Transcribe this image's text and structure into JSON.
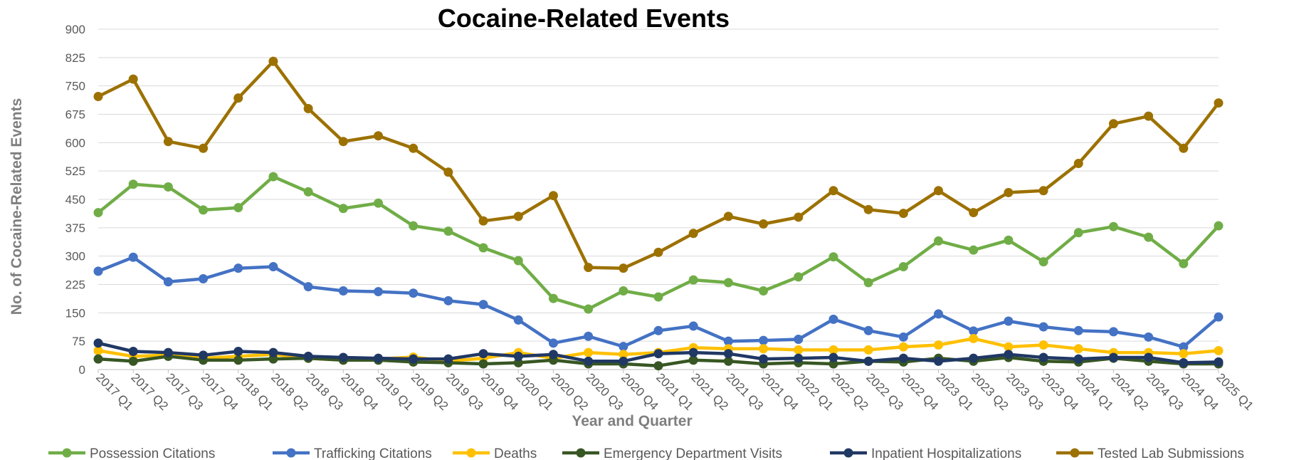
{
  "chart_data": {
    "type": "line",
    "title": "Cocaine-Related Events",
    "xlabel": "Year and Quarter",
    "ylabel": "No. of Cocaine-Related Events",
    "ylim": [
      0,
      900
    ],
    "yticks": [
      0,
      75,
      150,
      225,
      300,
      375,
      450,
      525,
      600,
      675,
      750,
      825,
      900
    ],
    "grid": true,
    "legend_position": "bottom",
    "categories": [
      "2017 Q1",
      "2017 Q2",
      "2017 Q3",
      "2017 Q4",
      "2018 Q1",
      "2018 Q2",
      "2018 Q3",
      "2018 Q4",
      "2019 Q1",
      "2019 Q2",
      "2019 Q3",
      "2019 Q4",
      "2020 Q1",
      "2020 Q2",
      "2020 Q3",
      "2020 Q4",
      "2021 Q1",
      "2021 Q2",
      "2021 Q3",
      "2021 Q4",
      "2022 Q1",
      "2022 Q2",
      "2022 Q3",
      "2022 Q4",
      "2023 Q1",
      "2023 Q2",
      "2023 Q3",
      "2023 Q4",
      "2024 Q1",
      "2024 Q2",
      "2024 Q3",
      "2024 Q4",
      "2025 Q1"
    ],
    "series": [
      {
        "name": "Possession Citations",
        "color": "#70ad47",
        "values": [
          415,
          490,
          483,
          422,
          428,
          510,
          470,
          426,
          440,
          380,
          366,
          322,
          288,
          188,
          160,
          208,
          192,
          237,
          230,
          208,
          245,
          298,
          230,
          272,
          340,
          316,
          342,
          285,
          362,
          378,
          350,
          280,
          380
        ]
      },
      {
        "name": "Trafficking Citations",
        "color": "#4472c4",
        "values": [
          260,
          297,
          232,
          240,
          268,
          272,
          219,
          208,
          206,
          202,
          182,
          172,
          131,
          70,
          88,
          61,
          103,
          115,
          75,
          77,
          80,
          133,
          103,
          86,
          147,
          102,
          128,
          113,
          103,
          100,
          86,
          60,
          139
        ]
      },
      {
        "name": "Deaths",
        "color": "#ffc000",
        "values": [
          50,
          35,
          38,
          30,
          35,
          40,
          30,
          25,
          28,
          33,
          22,
          30,
          45,
          30,
          45,
          40,
          45,
          58,
          55,
          55,
          52,
          52,
          52,
          60,
          65,
          82,
          60,
          65,
          55,
          45,
          45,
          42,
          50
        ]
      },
      {
        "name": "Emergency Department Visits",
        "color": "#375623",
        "values": [
          28,
          22,
          35,
          25,
          25,
          28,
          30,
          25,
          25,
          20,
          18,
          15,
          18,
          25,
          15,
          15,
          10,
          25,
          22,
          15,
          18,
          15,
          22,
          20,
          30,
          22,
          32,
          22,
          20,
          30,
          22,
          15,
          15
        ]
      },
      {
        "name": "Inpatient Hospitalizations",
        "color": "#203864",
        "values": [
          70,
          48,
          45,
          38,
          48,
          45,
          35,
          32,
          30,
          28,
          28,
          42,
          35,
          40,
          22,
          22,
          42,
          45,
          42,
          28,
          30,
          32,
          22,
          30,
          22,
          30,
          40,
          32,
          28,
          32,
          32,
          18,
          20
        ]
      },
      {
        "name": "Tested Lab Submissions",
        "color": "#9c7100",
        "values": [
          722,
          768,
          603,
          585,
          718,
          815,
          690,
          603,
          618,
          585,
          522,
          393,
          405,
          460,
          270,
          268,
          310,
          360,
          405,
          385,
          403,
          473,
          423,
          413,
          473,
          415,
          468,
          473,
          545,
          650,
          670,
          585,
          705
        ]
      }
    ]
  }
}
